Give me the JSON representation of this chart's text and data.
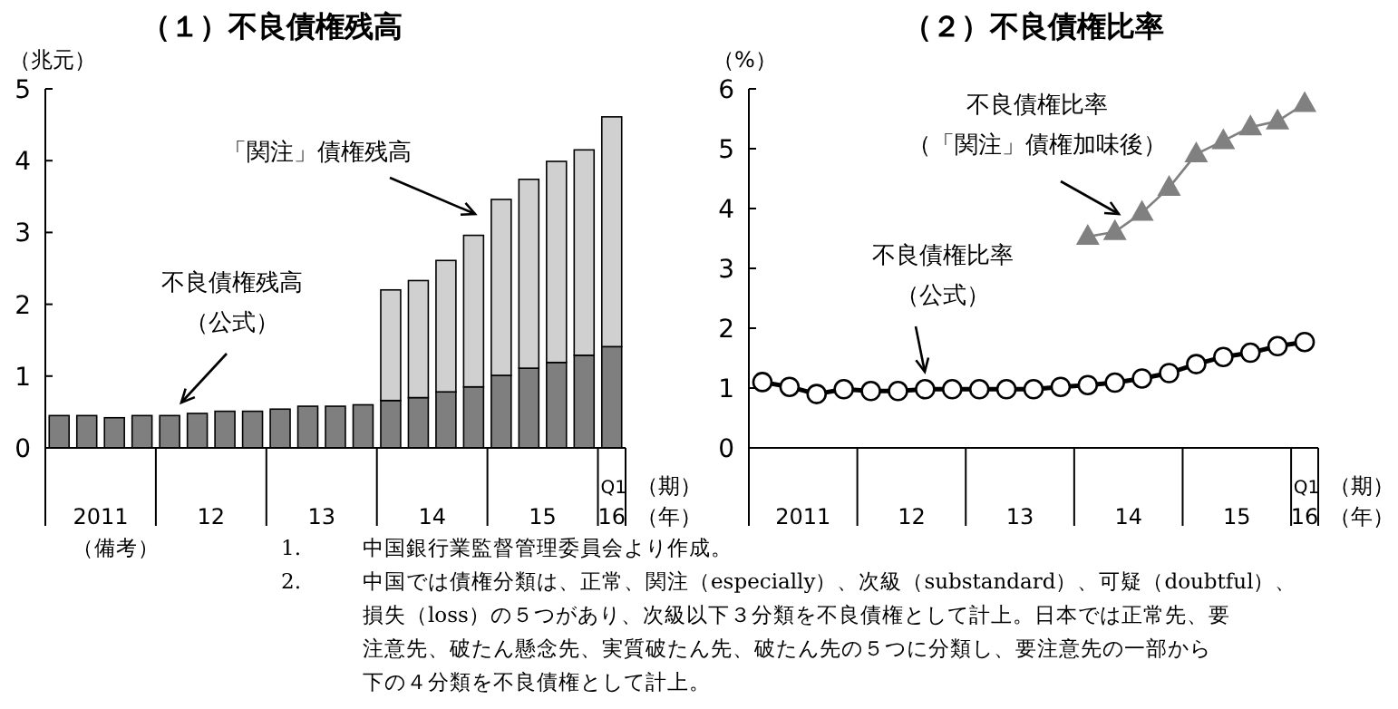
{
  "chart_data": [
    {
      "type": "bar",
      "stacked": true,
      "title": "（１）不良債権残高",
      "ylabel": "（兆元）",
      "xlabel": "（期）",
      "legend": false,
      "grid": false,
      "categories": [
        null,
        null,
        null,
        null,
        null,
        null,
        null,
        null,
        null,
        null,
        null,
        null,
        null,
        null,
        null,
        null,
        null,
        null,
        null,
        null,
        "Q1"
      ],
      "series": [
        {
          "name": "不良債権残高（公式）",
          "color": "#7f7f7f",
          "values": [
            0.45,
            0.45,
            0.42,
            0.45,
            0.45,
            0.48,
            0.51,
            0.51,
            0.54,
            0.58,
            0.58,
            0.6,
            0.66,
            0.7,
            0.78,
            0.85,
            1.01,
            1.11,
            1.19,
            1.29,
            1.41
          ]
        },
        {
          "name": "「関注」債権残高",
          "color": "#d0d0d0",
          "values": [
            null,
            null,
            null,
            null,
            null,
            null,
            null,
            null,
            null,
            null,
            null,
            null,
            1.54,
            1.63,
            1.83,
            2.11,
            2.45,
            2.63,
            2.8,
            2.86,
            3.2
          ]
        }
      ],
      "ylim": [
        0,
        5
      ],
      "yticks": [
        0,
        1,
        2,
        3,
        4,
        5
      ],
      "annotations": [
        "2011",
        "12",
        "13",
        "14",
        "15",
        "16",
        "（年）",
        "（備考）",
        "1.",
        "中国銀行業監督管理委員会より作成。",
        "2.",
        "中国では債権分類は、正常、関注（especially）、次級（substandard）、可疑（doubtful）、",
        "損失（loss）の５つがあり、次級以下３分類を不良債権として計上。日本では正常先、要",
        "注意先、破たん懸念先、実質破たん先、破たん先の５つに分類し、要注意先の一部から",
        "下の４分類を不良債権として計上。"
      ]
    },
    {
      "type": "line",
      "title": "（２）不良債権比率",
      "ylabel": "（%）",
      "xlabel": "（期）",
      "legend": false,
      "grid": false,
      "line_style": "solid",
      "categories": [
        null,
        null,
        null,
        null,
        null,
        null,
        null,
        null,
        null,
        null,
        null,
        null,
        null,
        null,
        null,
        null,
        null,
        null,
        null,
        null,
        "Q1"
      ],
      "series": [
        {
          "name": "不良債権比率（公式）",
          "color": "#000000",
          "marker": "circle",
          "values": [
            1.1,
            1.02,
            0.9,
            0.98,
            0.95,
            0.95,
            0.98,
            0.98,
            0.98,
            0.98,
            0.98,
            1.02,
            1.05,
            1.09,
            1.16,
            1.25,
            1.4,
            1.52,
            1.59,
            1.7,
            1.77
          ]
        },
        {
          "name": "不良債権比率（「関注」債権加味後）",
          "color": "#808080",
          "marker": "triangle",
          "values": [
            null,
            null,
            null,
            null,
            null,
            null,
            null,
            null,
            null,
            null,
            null,
            null,
            3.53,
            3.61,
            3.93,
            4.35,
            4.91,
            5.13,
            5.36,
            5.46,
            5.75
          ]
        }
      ],
      "ylim": [
        0,
        6
      ],
      "yticks": [
        0,
        1,
        2,
        3,
        4,
        5,
        6
      ],
      "annotations": [
        "2011",
        "12",
        "13",
        "14",
        "15",
        "16",
        "（年）"
      ]
    }
  ]
}
